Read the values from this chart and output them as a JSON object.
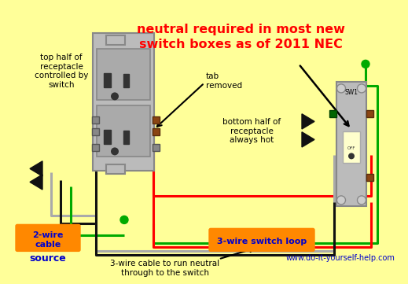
{
  "bg_color": "#FFFF99",
  "title_line1": "neutral required in most new",
  "title_line2": "switch boxes as of 2011 NEC",
  "title_color": "#FF0000",
  "label_top_receptacle": "top half of\nreceptacle\ncontrolled by\nswitch",
  "label_bottom_receptacle": "bottom half of\nreceptacle\nalways hot",
  "label_tab_removed": "tab\nremoved",
  "label_2wire": "2-wire\ncable",
  "label_source": "source",
  "label_3wire_switch": "3-wire switch loop",
  "label_3wire_neutral": "3-wire cable to run neutral\nthrough to the switch",
  "label_sw1": "SW1",
  "label_off": "OFF",
  "website": "www.do-it-yourself-help.com",
  "colors": {
    "black": "#111111",
    "white": "#FFFFFF",
    "red": "#FF0000",
    "green": "#00AA00",
    "gray": "#AAAAAA",
    "orange": "#FF8800",
    "blue": "#0000CC",
    "brown": "#8B4513",
    "light_gray": "#CCCCCC",
    "dark_gray": "#888888",
    "outlet_body": "#BBBBBB",
    "outlet_face": "#AAAAAA",
    "slot": "#333333",
    "bg": "#FFFF99"
  }
}
